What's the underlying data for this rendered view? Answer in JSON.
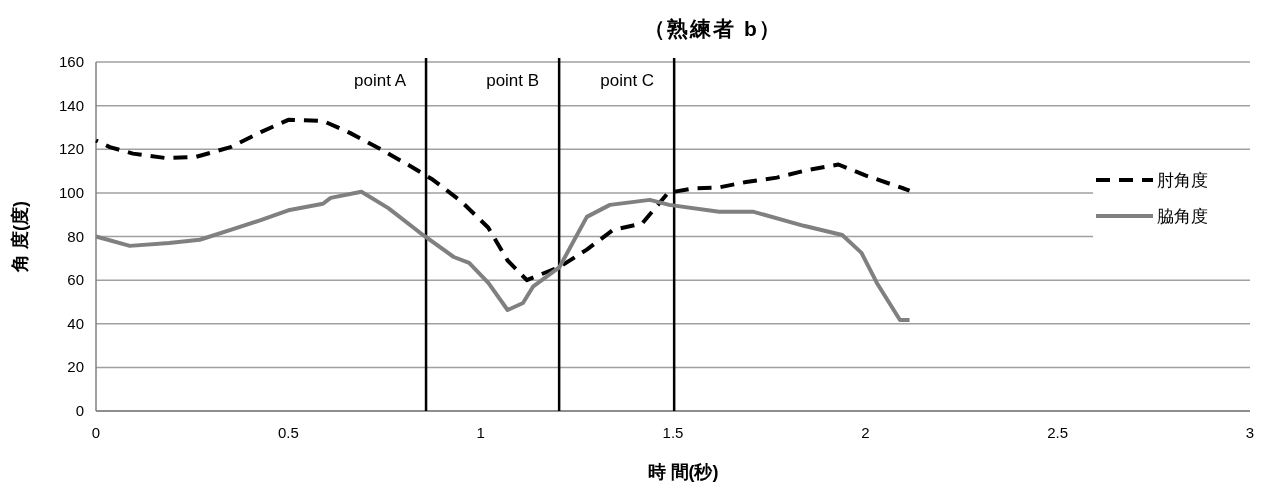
{
  "chart_data": {
    "type": "line",
    "title": "（熟練者 b）",
    "xlabel": "時 間(秒)",
    "ylabel": "角 度(度)",
    "xlim": [
      0,
      3
    ],
    "xticks": [
      0,
      {
        "value": 0.5,
        "label": "0.5"
      },
      1,
      {
        "value": 1.5,
        "label": "1.5"
      },
      2,
      {
        "value": 2.5,
        "label": "2.5"
      },
      3
    ],
    "ylim": [
      0,
      160
    ],
    "yticks": [
      0,
      20,
      40,
      60,
      80,
      100,
      120,
      140,
      160
    ],
    "grid": "y",
    "legend": "right",
    "series": [
      {
        "name": "肘角度",
        "color": "#000000",
        "line_style": "dashed",
        "x": [
          0,
          0.036,
          0.096,
          0.18,
          0.26,
          0.35,
          0.43,
          0.5,
          0.59,
          0.66,
          0.74,
          0.82,
          0.876,
          0.95,
          1.02,
          1.07,
          1.12,
          1.14,
          1.205,
          1.276,
          1.344,
          1.42,
          1.487,
          1.55,
          1.62,
          1.69,
          1.77,
          1.85,
          1.93,
          2.0,
          2.1,
          2.115
        ],
        "values": [
          124,
          121,
          118,
          116,
          116.5,
          121,
          128,
          133.5,
          133,
          127.5,
          120,
          112,
          106,
          96,
          84,
          69,
          60,
          61.5,
          66,
          74,
          83,
          86,
          100,
          102,
          102.5,
          105,
          107,
          110.5,
          113,
          108,
          102,
          101
        ]
      },
      {
        "name": "脇角度",
        "color": "#808080",
        "line_style": "solid",
        "x": [
          0,
          0.088,
          0.19,
          0.27,
          0.35,
          0.43,
          0.5,
          0.59,
          0.61,
          0.69,
          0.76,
          0.85,
          0.93,
          0.97,
          1.02,
          1.07,
          1.11,
          1.136,
          1.205,
          1.276,
          1.336,
          1.44,
          1.47,
          1.49,
          1.62,
          1.71,
          1.84,
          1.94,
          1.99,
          2.03,
          2.09,
          2.115
        ],
        "values": [
          80,
          75.7,
          77,
          78.5,
          83,
          87.6,
          92,
          95,
          97.7,
          100.5,
          93,
          80.7,
          70.6,
          67.9,
          58.7,
          46.3,
          49.5,
          57,
          66,
          89,
          94.5,
          96.8,
          95.4,
          94.5,
          91.3,
          91.3,
          84.9,
          80.7,
          72.5,
          58.7,
          41.7,
          41.7
        ]
      }
    ],
    "ref_lines": [
      {
        "axis": "x",
        "value": 0.858,
        "label": "point A",
        "color": "#000000"
      },
      {
        "axis": "x",
        "value": 1.204,
        "label": "point B",
        "color": "#000000"
      },
      {
        "axis": "x",
        "value": 1.503,
        "label": "point C",
        "color": "#000000"
      }
    ]
  }
}
